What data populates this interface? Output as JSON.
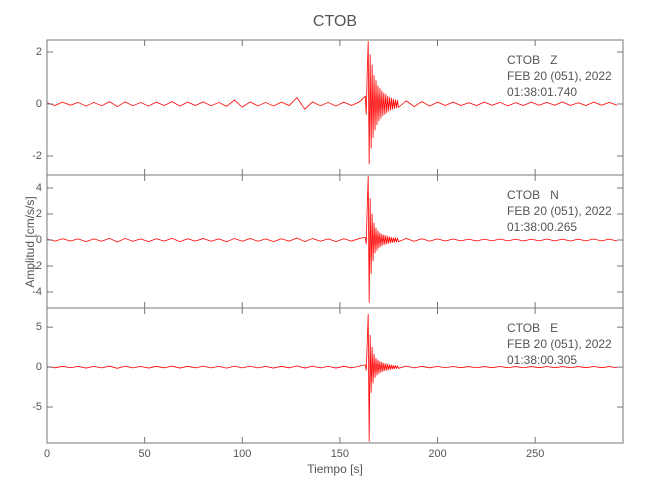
{
  "chart_data": [
    {
      "type": "line",
      "title": "CTOB",
      "color": "#ff0000",
      "annotations": [
        "CTOB   Z",
        "FEB 20 (051), 2022",
        "01:38:01.740"
      ],
      "xlim": [
        0,
        295
      ],
      "xticks": [
        0,
        50,
        100,
        150,
        200,
        250
      ],
      "ylim": [
        -2.73,
        2.46
      ],
      "yticks": [
        -2,
        0,
        2
      ],
      "x": [
        0,
        4,
        8,
        12,
        16,
        20,
        24,
        28,
        32,
        36,
        40,
        44,
        48,
        52,
        56,
        60,
        64,
        68,
        72,
        76,
        80,
        84,
        88,
        92,
        96,
        100,
        104,
        108,
        112,
        116,
        120,
        124,
        128,
        132,
        136,
        140,
        144,
        148,
        152,
        156,
        160,
        163,
        163.5,
        164,
        164.5,
        165,
        165.5,
        166,
        166.5,
        167,
        167.5,
        168,
        168.5,
        169,
        169.5,
        170,
        170.5,
        171,
        171.5,
        172,
        172.5,
        173,
        173.5,
        174,
        174.5,
        175,
        175.5,
        176,
        176.5,
        177,
        177.5,
        178,
        178.5,
        179,
        179.5,
        180,
        184,
        188,
        192,
        196,
        200,
        204,
        208,
        212,
        216,
        220,
        224,
        228,
        232,
        236,
        240,
        244,
        248,
        252,
        256,
        260,
        264,
        268,
        272,
        276,
        280,
        284,
        288,
        292
      ],
      "values": [
        0.05,
        -0.06,
        0.07,
        -0.05,
        0.06,
        -0.08,
        0.06,
        -0.07,
        0.09,
        -0.1,
        0.08,
        -0.07,
        0.06,
        -0.08,
        0.07,
        -0.06,
        0.09,
        -0.08,
        0.07,
        -0.06,
        0.08,
        -0.07,
        0.06,
        -0.09,
        0.15,
        -0.12,
        0.08,
        -0.07,
        0.06,
        -0.08,
        0.07,
        -0.06,
        0.25,
        -0.2,
        0.08,
        -0.07,
        0.06,
        -0.08,
        0.07,
        -0.06,
        0.08,
        0.3,
        -0.4,
        1.2,
        2.4,
        -2.3,
        1.9,
        -1.7,
        1.5,
        -1.3,
        1.1,
        -1.0,
        0.9,
        -0.8,
        0.7,
        -0.65,
        0.6,
        -0.55,
        0.5,
        -0.45,
        0.42,
        -0.4,
        0.37,
        -0.34,
        0.3,
        -0.28,
        0.26,
        -0.24,
        0.22,
        -0.2,
        0.18,
        -0.17,
        0.16,
        -0.15,
        0.14,
        -0.13,
        0.12,
        -0.1,
        0.09,
        -0.08,
        0.07,
        -0.06,
        0.07,
        -0.06,
        0.05,
        -0.06,
        0.07,
        -0.05,
        0.06,
        -0.07,
        0.05,
        -0.06,
        0.07,
        -0.05,
        0.06,
        -0.05,
        0.08,
        -0.06,
        0.05,
        -0.06,
        0.07,
        -0.05,
        0.06,
        -0.05
      ]
    },
    {
      "type": "line",
      "ylabel": "Amplitud [cm/s/s]",
      "color": "#ff0000",
      "annotations": [
        "CTOB   N",
        "FEB 20 (051), 2022",
        "01:38:00.265"
      ],
      "xlim": [
        0,
        295
      ],
      "xticks": [
        0,
        50,
        100,
        150,
        200,
        250
      ],
      "ylim": [
        -5.23,
        5
      ],
      "yticks": [
        -4,
        -2,
        0,
        2,
        4
      ],
      "x": [
        0,
        4,
        8,
        12,
        16,
        20,
        24,
        28,
        32,
        36,
        40,
        44,
        48,
        52,
        56,
        60,
        64,
        68,
        72,
        76,
        80,
        84,
        88,
        92,
        96,
        100,
        104,
        108,
        112,
        116,
        120,
        124,
        128,
        132,
        136,
        140,
        144,
        148,
        152,
        156,
        160,
        163,
        163.5,
        164,
        164.5,
        165,
        165.5,
        166,
        166.5,
        167,
        167.5,
        168,
        168.5,
        169,
        169.5,
        170,
        170.5,
        171,
        171.5,
        172,
        172.5,
        173,
        173.5,
        174,
        174.5,
        175,
        175.5,
        176,
        176.5,
        177,
        177.5,
        178,
        178.5,
        179,
        179.5,
        180,
        184,
        188,
        192,
        196,
        200,
        204,
        208,
        212,
        216,
        220,
        224,
        228,
        232,
        236,
        240,
        244,
        248,
        252,
        256,
        260,
        264,
        268,
        272,
        276,
        280,
        284,
        288,
        292
      ],
      "values": [
        0.08,
        -0.09,
        0.1,
        -0.08,
        0.09,
        -0.12,
        0.09,
        -0.1,
        0.13,
        -0.15,
        0.12,
        -0.1,
        0.09,
        -0.12,
        0.1,
        -0.09,
        0.13,
        -0.12,
        0.1,
        -0.09,
        0.12,
        -0.1,
        0.09,
        -0.13,
        0.12,
        -0.1,
        0.12,
        -0.1,
        0.09,
        -0.12,
        0.1,
        -0.09,
        0.15,
        -0.12,
        0.12,
        -0.1,
        0.09,
        -0.12,
        0.1,
        -0.09,
        0.12,
        0.2,
        -0.3,
        2.5,
        4.9,
        -4.8,
        3.2,
        -2.6,
        2.0,
        -1.6,
        1.3,
        -1.0,
        0.9,
        -0.8,
        0.7,
        -0.6,
        0.55,
        -0.5,
        0.45,
        -0.4,
        0.38,
        -0.35,
        0.33,
        -0.3,
        0.28,
        -0.26,
        0.24,
        -0.22,
        0.2,
        -0.19,
        0.18,
        -0.17,
        0.16,
        -0.15,
        0.14,
        -0.13,
        0.12,
        -0.1,
        0.1,
        -0.09,
        0.09,
        -0.08,
        0.08,
        -0.07,
        0.07,
        -0.08,
        0.07,
        -0.07,
        0.08,
        -0.07,
        0.07,
        -0.08,
        0.07,
        -0.07,
        0.08,
        -0.07,
        0.07,
        -0.08,
        0.07,
        -0.07,
        0.08,
        -0.07,
        0.07,
        -0.08
      ]
    },
    {
      "type": "line",
      "xlabel": "Tiempo [s]",
      "color": "#ff0000",
      "annotations": [
        "CTOB   E",
        "FEB 20 (051), 2022",
        "01:38:00.305"
      ],
      "xlim": [
        0,
        295
      ],
      "xticks": [
        0,
        50,
        100,
        150,
        200,
        250
      ],
      "ylim": [
        -9.5,
        7.4
      ],
      "yticks": [
        -5,
        0,
        5
      ],
      "x": [
        0,
        4,
        8,
        12,
        16,
        20,
        24,
        28,
        32,
        36,
        40,
        44,
        48,
        52,
        56,
        60,
        64,
        68,
        72,
        76,
        80,
        84,
        88,
        92,
        96,
        100,
        104,
        108,
        112,
        116,
        120,
        124,
        128,
        132,
        136,
        140,
        144,
        148,
        152,
        156,
        160,
        163,
        163.5,
        164,
        164.5,
        165,
        165.5,
        166,
        166.5,
        167,
        167.5,
        168,
        168.5,
        169,
        169.5,
        170,
        170.5,
        171,
        171.5,
        172,
        172.5,
        173,
        173.5,
        174,
        174.5,
        175,
        175.5,
        176,
        176.5,
        177,
        177.5,
        178,
        178.5,
        179,
        179.5,
        180,
        184,
        188,
        192,
        196,
        200,
        204,
        208,
        212,
        216,
        220,
        224,
        228,
        232,
        236,
        240,
        244,
        248,
        252,
        256,
        260,
        264,
        268,
        272,
        276,
        280,
        284,
        288,
        292
      ],
      "values": [
        0.08,
        -0.09,
        0.1,
        -0.08,
        0.09,
        -0.12,
        0.09,
        -0.1,
        0.13,
        -0.15,
        0.12,
        -0.1,
        0.09,
        -0.12,
        0.1,
        -0.09,
        0.13,
        -0.12,
        0.1,
        -0.09,
        0.12,
        -0.1,
        0.09,
        -0.13,
        0.12,
        -0.1,
        0.12,
        -0.1,
        0.09,
        -0.12,
        0.1,
        -0.09,
        0.15,
        -0.12,
        0.12,
        -0.1,
        0.09,
        -0.12,
        0.1,
        -0.09,
        0.12,
        0.3,
        -0.4,
        3.0,
        6.6,
        -9.3,
        4.0,
        -3.2,
        2.5,
        -2.0,
        1.6,
        -1.3,
        1.1,
        -1.0,
        0.9,
        -0.8,
        0.7,
        -0.65,
        0.6,
        -0.55,
        0.5,
        -0.45,
        0.42,
        -0.4,
        0.37,
        -0.34,
        0.3,
        -0.28,
        0.26,
        -0.24,
        0.22,
        -0.2,
        0.18,
        -0.17,
        0.16,
        -0.15,
        0.12,
        -0.1,
        0.1,
        -0.09,
        0.09,
        -0.08,
        0.08,
        -0.07,
        0.07,
        -0.08,
        0.07,
        -0.07,
        0.08,
        -0.07,
        0.07,
        -0.08,
        0.07,
        -0.07,
        0.08,
        -0.07,
        0.07,
        -0.08,
        0.07,
        -0.07,
        0.08,
        -0.07,
        0.07,
        -0.08
      ]
    }
  ]
}
